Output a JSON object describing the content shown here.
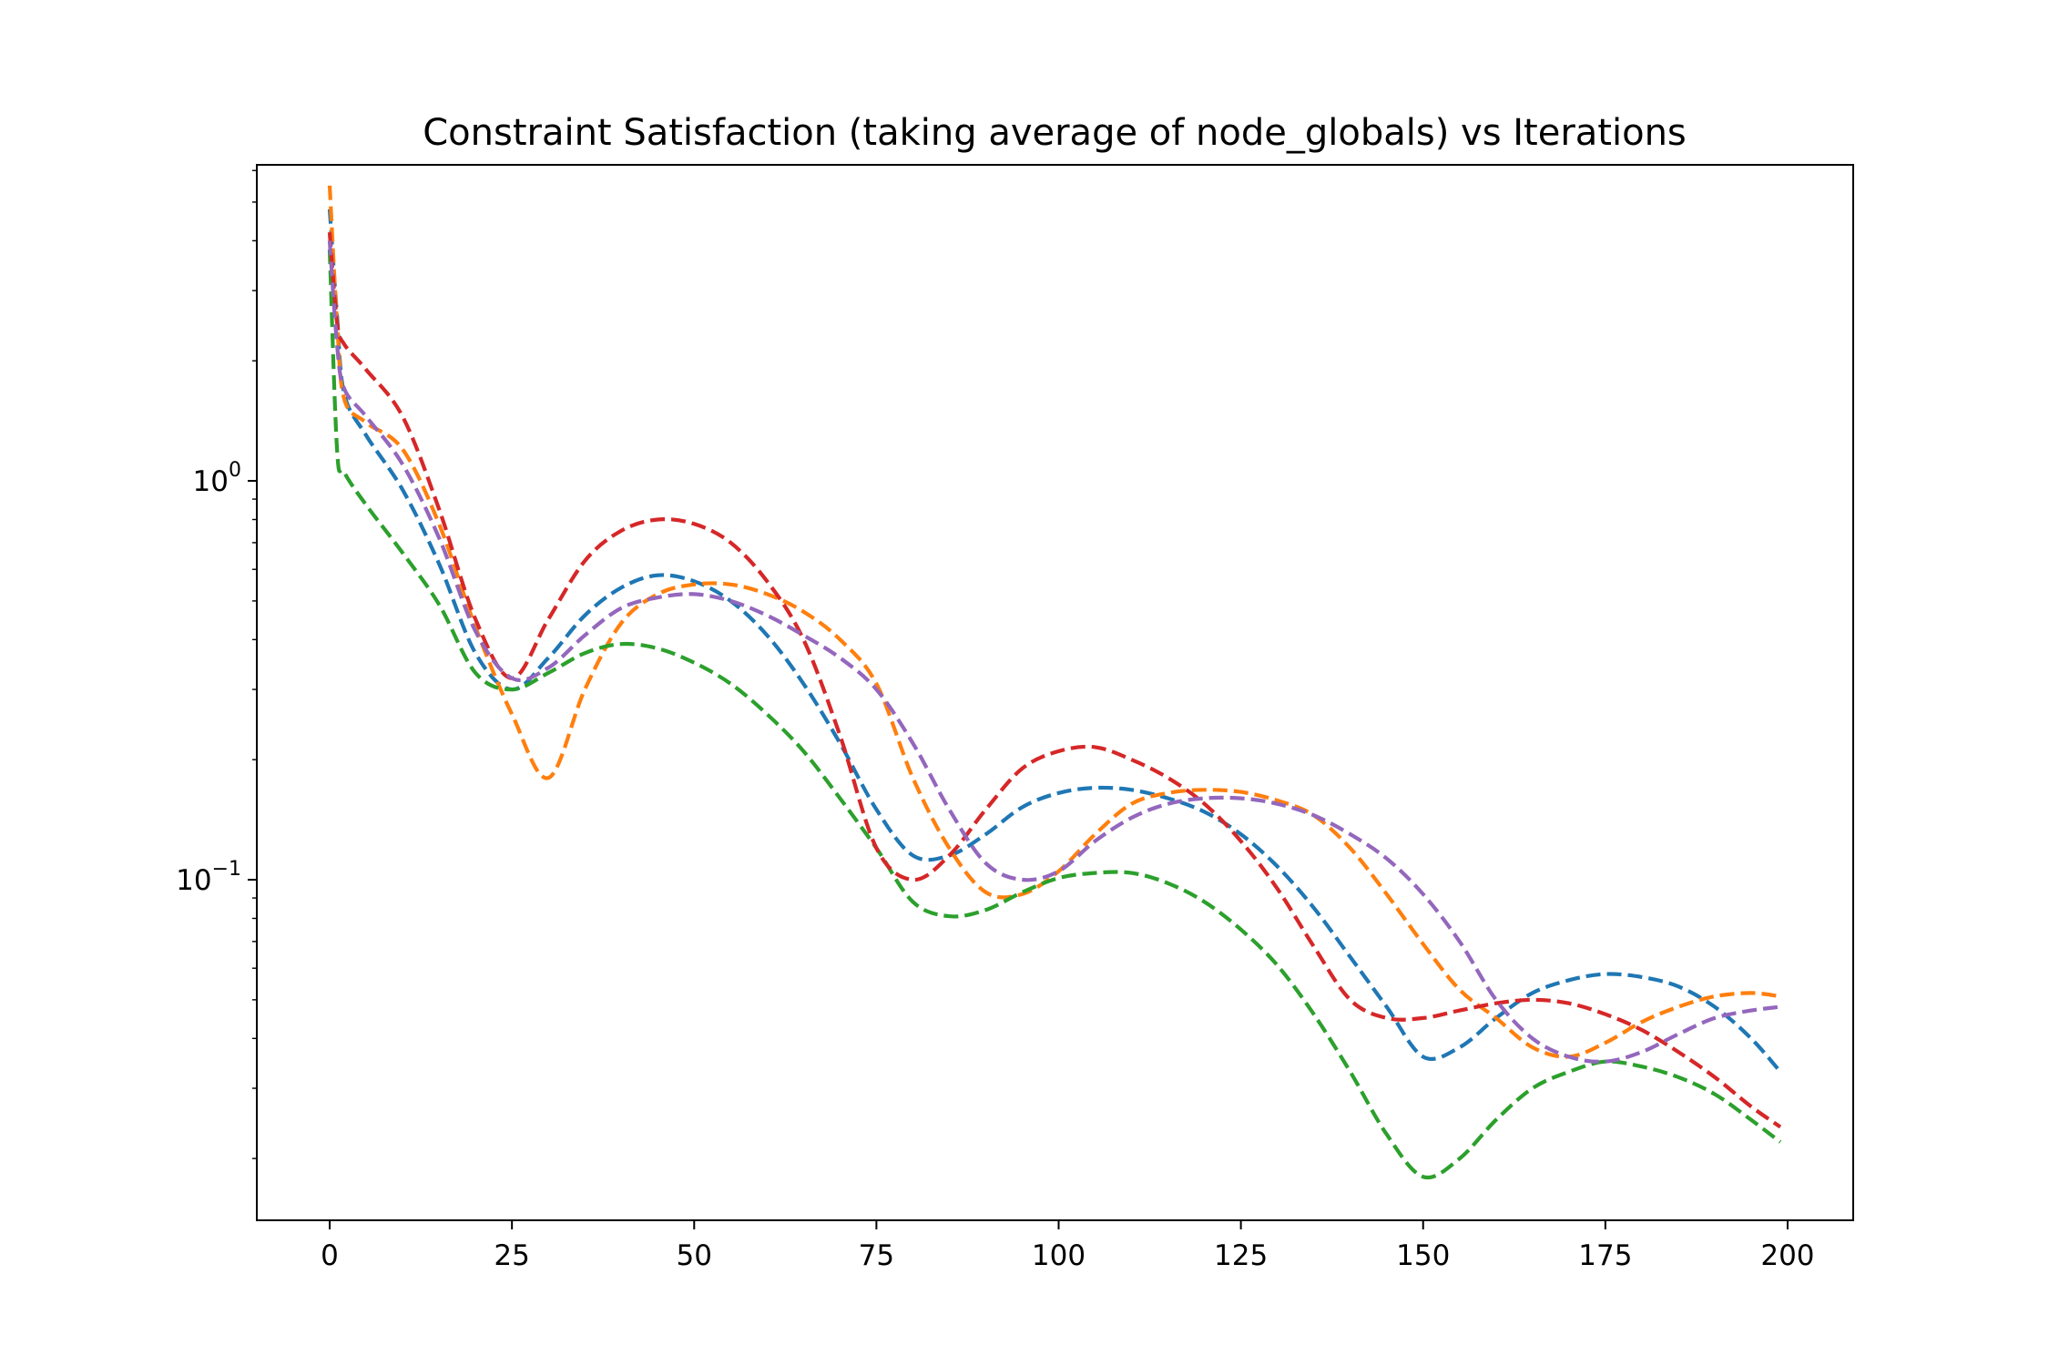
{
  "chart_data": {
    "type": "line",
    "title": "Constraint Satisfaction (taking average of node_globals) vs Iterations",
    "xlabel": "",
    "ylabel": "",
    "xscale": "linear",
    "yscale": "log",
    "xlim": [
      -10,
      209
    ],
    "ylim": [
      0.014,
      6.2
    ],
    "grid": false,
    "legend": "none",
    "line_style": "dashed",
    "xticks": [
      0,
      25,
      50,
      75,
      100,
      125,
      150,
      175,
      200
    ],
    "xtick_labels": [
      "0",
      "25",
      "50",
      "75",
      "100",
      "125",
      "150",
      "175",
      "200"
    ],
    "yticks": [
      {
        "value": 1,
        "base": "10",
        "exp": "0"
      },
      {
        "value": 0.1,
        "base": "10",
        "exp": "−1"
      }
    ],
    "x": [
      0,
      1,
      2,
      5,
      10,
      15,
      20,
      25,
      30,
      35,
      40,
      45,
      50,
      55,
      60,
      65,
      70,
      75,
      80,
      85,
      90,
      95,
      100,
      105,
      110,
      115,
      120,
      125,
      130,
      135,
      140,
      145,
      150,
      155,
      160,
      165,
      170,
      175,
      180,
      185,
      190,
      195,
      199
    ],
    "series": [
      {
        "color": "#1f77b4",
        "values": [
          4.8,
          2.6,
          1.65,
          1.3,
          0.95,
          0.62,
          0.37,
          0.3,
          0.36,
          0.46,
          0.54,
          0.58,
          0.56,
          0.5,
          0.41,
          0.31,
          0.22,
          0.15,
          0.115,
          0.115,
          0.13,
          0.152,
          0.165,
          0.17,
          0.168,
          0.16,
          0.148,
          0.13,
          0.108,
          0.085,
          0.064,
          0.048,
          0.036,
          0.038,
          0.045,
          0.052,
          0.056,
          0.058,
          0.057,
          0.054,
          0.048,
          0.04,
          0.033
        ]
      },
      {
        "color": "#ff7f0e",
        "values": [
          5.5,
          2.5,
          1.6,
          1.4,
          1.2,
          0.78,
          0.43,
          0.26,
          0.18,
          0.3,
          0.44,
          0.52,
          0.55,
          0.55,
          0.52,
          0.47,
          0.4,
          0.31,
          0.18,
          0.12,
          0.093,
          0.092,
          0.105,
          0.13,
          0.155,
          0.165,
          0.168,
          0.166,
          0.158,
          0.145,
          0.12,
          0.092,
          0.069,
          0.053,
          0.045,
          0.038,
          0.036,
          0.039,
          0.044,
          0.048,
          0.051,
          0.052,
          0.051
        ]
      },
      {
        "color": "#2ca02c",
        "values": [
          3.8,
          1.2,
          1.05,
          0.87,
          0.66,
          0.49,
          0.33,
          0.3,
          0.33,
          0.37,
          0.39,
          0.38,
          0.35,
          0.31,
          0.26,
          0.21,
          0.16,
          0.12,
          0.088,
          0.081,
          0.084,
          0.093,
          0.101,
          0.104,
          0.104,
          0.098,
          0.088,
          0.075,
          0.061,
          0.046,
          0.033,
          0.023,
          0.018,
          0.02,
          0.025,
          0.03,
          0.033,
          0.035,
          0.034,
          0.032,
          0.029,
          0.025,
          0.022
        ]
      },
      {
        "color": "#d62728",
        "values": [
          4.2,
          2.5,
          2.2,
          1.9,
          1.45,
          0.85,
          0.45,
          0.32,
          0.45,
          0.63,
          0.75,
          0.8,
          0.78,
          0.7,
          0.56,
          0.4,
          0.23,
          0.12,
          0.1,
          0.115,
          0.15,
          0.19,
          0.21,
          0.215,
          0.2,
          0.18,
          0.155,
          0.125,
          0.095,
          0.068,
          0.05,
          0.045,
          0.045,
          0.047,
          0.049,
          0.05,
          0.049,
          0.046,
          0.042,
          0.037,
          0.032,
          0.027,
          0.024
        ]
      },
      {
        "color": "#9467bd",
        "values": [
          4.0,
          2.2,
          1.7,
          1.45,
          1.1,
          0.72,
          0.42,
          0.32,
          0.34,
          0.41,
          0.48,
          0.51,
          0.52,
          0.5,
          0.46,
          0.41,
          0.36,
          0.3,
          0.22,
          0.15,
          0.11,
          0.1,
          0.105,
          0.125,
          0.143,
          0.155,
          0.16,
          0.16,
          0.155,
          0.145,
          0.13,
          0.113,
          0.092,
          0.07,
          0.05,
          0.04,
          0.036,
          0.035,
          0.037,
          0.041,
          0.045,
          0.047,
          0.048
        ]
      }
    ]
  }
}
